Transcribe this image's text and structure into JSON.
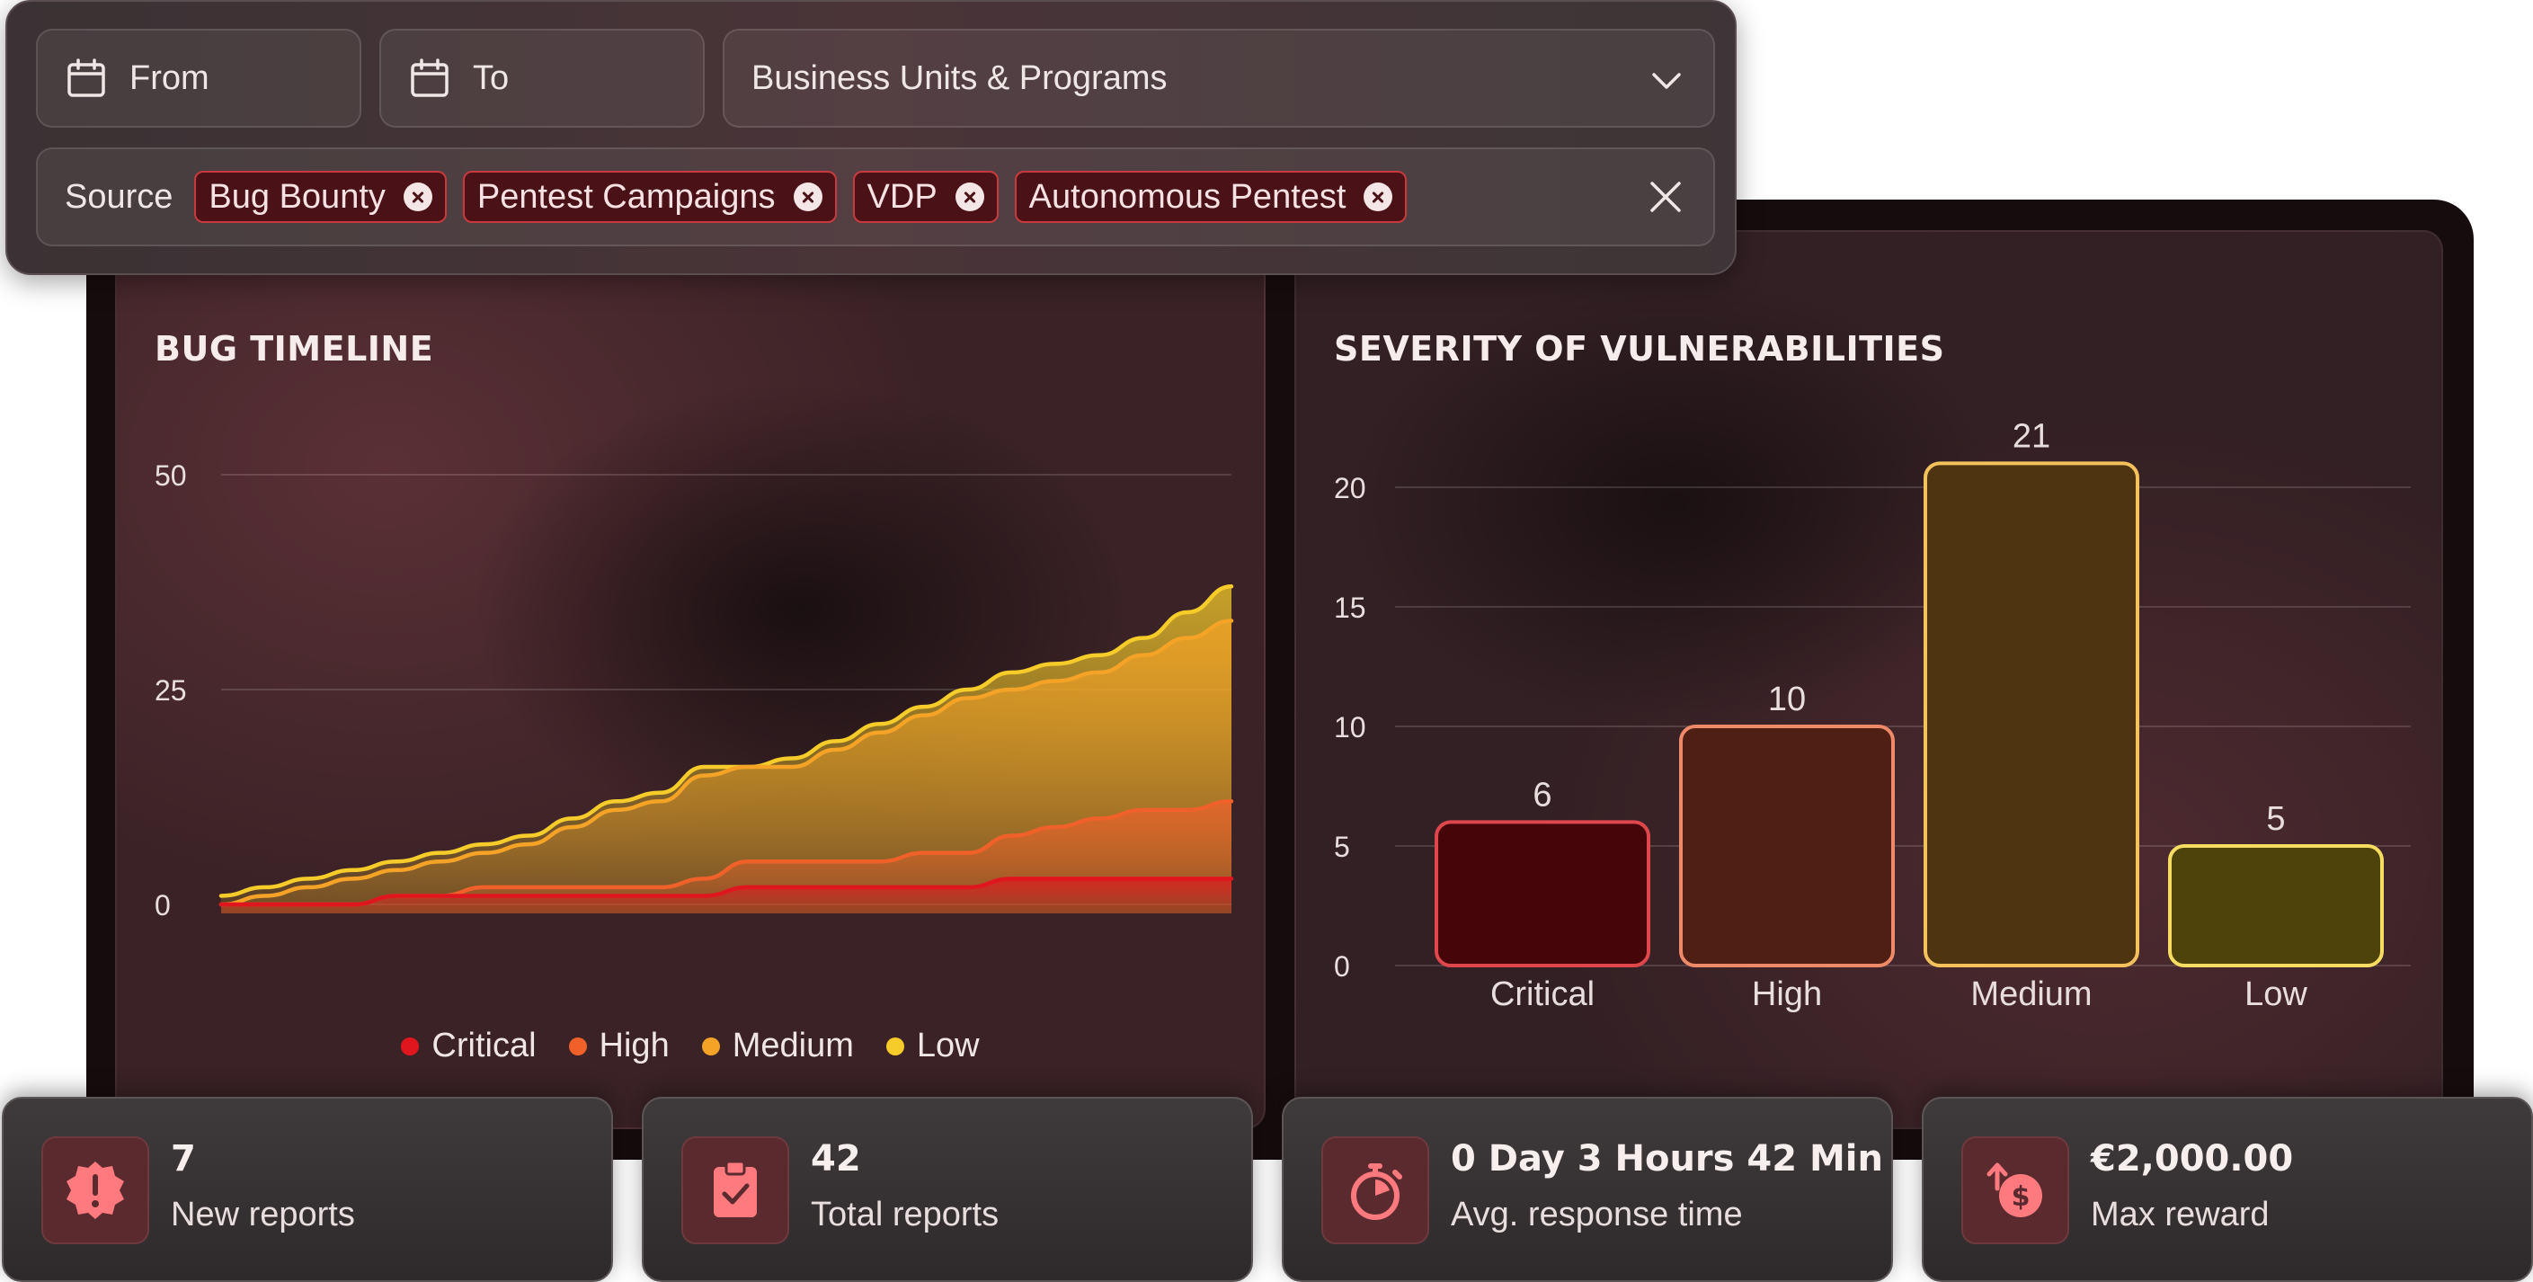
{
  "filters": {
    "from_placeholder": "From",
    "to_placeholder": "To",
    "business_units": "Business Units & Programs",
    "source_label": "Source",
    "source_chips": [
      "Bug Bounty",
      "Pentest Campaigns",
      "VDP",
      "Autonomous Pentest"
    ]
  },
  "timeline": {
    "title": "BUG TIMELINE",
    "legend": [
      "Critical",
      "High",
      "Medium",
      "Low"
    ]
  },
  "severity": {
    "title": "SEVERITY OF VULNERABILITIES"
  },
  "stats": [
    {
      "value": "7",
      "label": "New reports",
      "icon": "alert-badge-icon"
    },
    {
      "value": "42",
      "label": "Total reports",
      "icon": "clipboard-check-icon"
    },
    {
      "value": "0 Day 3 Hours 42 Min",
      "label": "Avg. response time",
      "icon": "stopwatch-icon"
    },
    {
      "value": "€2,000.00",
      "label": "Max reward",
      "icon": "dollar-up-icon"
    }
  ],
  "colors": {
    "critical": "#e0161e",
    "high": "#f0612a",
    "medium": "#f4a326",
    "low": "#f6cc2a"
  },
  "chart_data": [
    {
      "type": "area",
      "title": "BUG TIMELINE",
      "ylim": [
        0,
        50
      ],
      "yticks": [
        0,
        25,
        50
      ],
      "grid": true,
      "legend_position": "bottom",
      "x": [
        0,
        1,
        2,
        3,
        4,
        5,
        6,
        7,
        8,
        9,
        10,
        11,
        12,
        13,
        14,
        15,
        16,
        17,
        18,
        19,
        20,
        21,
        22,
        23
      ],
      "series": [
        {
          "name": "Critical",
          "values": [
            0,
            0,
            0,
            0,
            1,
            1,
            1,
            1,
            1,
            1,
            1,
            1,
            2,
            2,
            2,
            2,
            2,
            2,
            3,
            3,
            3,
            3,
            3,
            3
          ]
        },
        {
          "name": "High",
          "values": [
            0,
            0,
            0,
            0,
            1,
            1,
            2,
            2,
            2,
            2,
            2,
            3,
            5,
            5,
            5,
            5,
            6,
            6,
            8,
            9,
            10,
            11,
            11,
            12
          ]
        },
        {
          "name": "Medium",
          "values": [
            0,
            1,
            2,
            3,
            4,
            5,
            6,
            7,
            9,
            11,
            12,
            15,
            16,
            16,
            18,
            20,
            22,
            24,
            25,
            26,
            27,
            29,
            31,
            33
          ]
        },
        {
          "name": "Low",
          "values": [
            1,
            2,
            3,
            4,
            5,
            6,
            7,
            8,
            10,
            12,
            13,
            16,
            16,
            17,
            19,
            21,
            23,
            25,
            27,
            28,
            29,
            31,
            34,
            37
          ]
        }
      ]
    },
    {
      "type": "bar",
      "title": "SEVERITY OF VULNERABILITIES",
      "categories": [
        "Critical",
        "High",
        "Medium",
        "Low"
      ],
      "values": [
        6,
        10,
        21,
        5
      ],
      "ylim": [
        0,
        20
      ],
      "yticks": [
        0,
        5,
        10,
        15,
        20
      ],
      "grid": true
    }
  ]
}
